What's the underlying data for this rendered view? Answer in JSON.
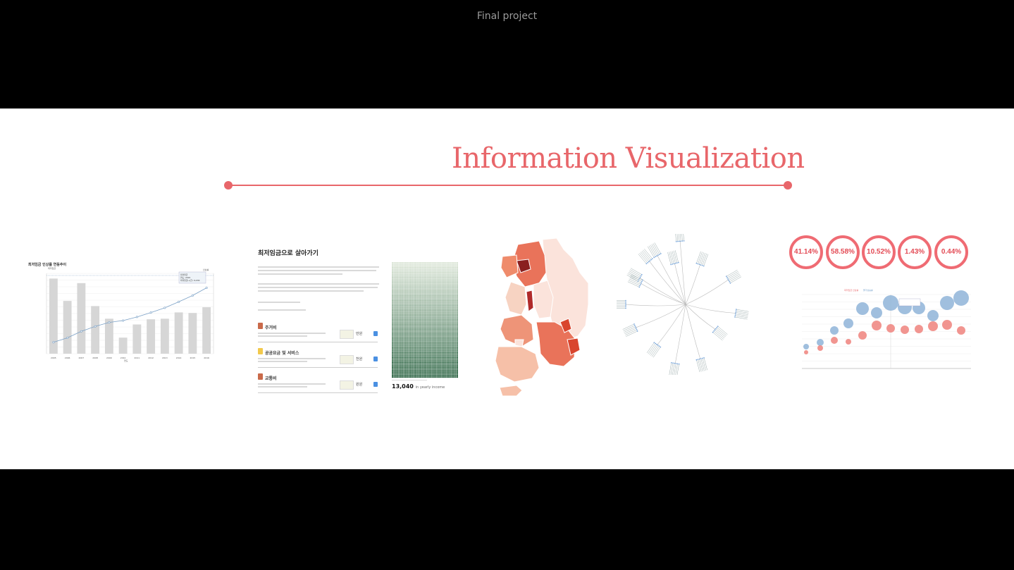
{
  "window": {
    "title": "Final project"
  },
  "slide": {
    "title": "Information Visualization"
  },
  "accent_color": "#e8666a",
  "thumbnails": {
    "chart1": {
      "title": "최저임금 인상률 연동추이",
      "legend_line": "최저임금",
      "legend_bar": "인상률",
      "xlabel": "연도",
      "ylabel_left": "최저임금(원)",
      "ylabel_right": "인상률(%)",
      "tooltip": [
        "최저임금",
        "연도: 2016",
        "최저임금(시급): 6,030"
      ]
    },
    "article": {
      "title": "최저임금으로 살아가기",
      "sections": [
        {
          "icon": "building-icon",
          "label": "주거비",
          "unit": "만원"
        },
        {
          "icon": "lightbulb-icon",
          "label": "공공요금 및 서비스",
          "unit": "천원"
        },
        {
          "icon": "bus-icon",
          "label": "교통비",
          "unit": "원원"
        }
      ],
      "income_value": "13,040",
      "income_caption": "in yearly income"
    },
    "percentages": [
      "41.14%",
      "58.58%",
      "10.52%",
      "1.43%",
      "0.44%"
    ],
    "bubble_legend": [
      "최저임금 인상률",
      "물가상승률"
    ]
  },
  "chart_data": {
    "type": "bar",
    "title": "최저임금 인상률 연동추이",
    "xlabel": "연도",
    "ylabel": "최저임금(원)",
    "categories": [
      "2005",
      "2006",
      "2007",
      "2008",
      "2009",
      "2010",
      "2011",
      "2012",
      "2013",
      "2014",
      "2015",
      "2016"
    ],
    "series": [
      {
        "name": "인상률",
        "values": [
          13.1,
          9.2,
          12.3,
          8.3,
          6.1,
          2.8,
          5.1,
          6.0,
          6.1,
          7.2,
          7.1,
          8.1
        ]
      },
      {
        "name": "최저임금",
        "values": [
          2840,
          3100,
          3480,
          3770,
          4000,
          4110,
          4320,
          4580,
          4860,
          5210,
          5580,
          6030
        ]
      }
    ],
    "ylim": [
      0,
      6500
    ],
    "ylim_right": [
      0,
      14
    ]
  }
}
